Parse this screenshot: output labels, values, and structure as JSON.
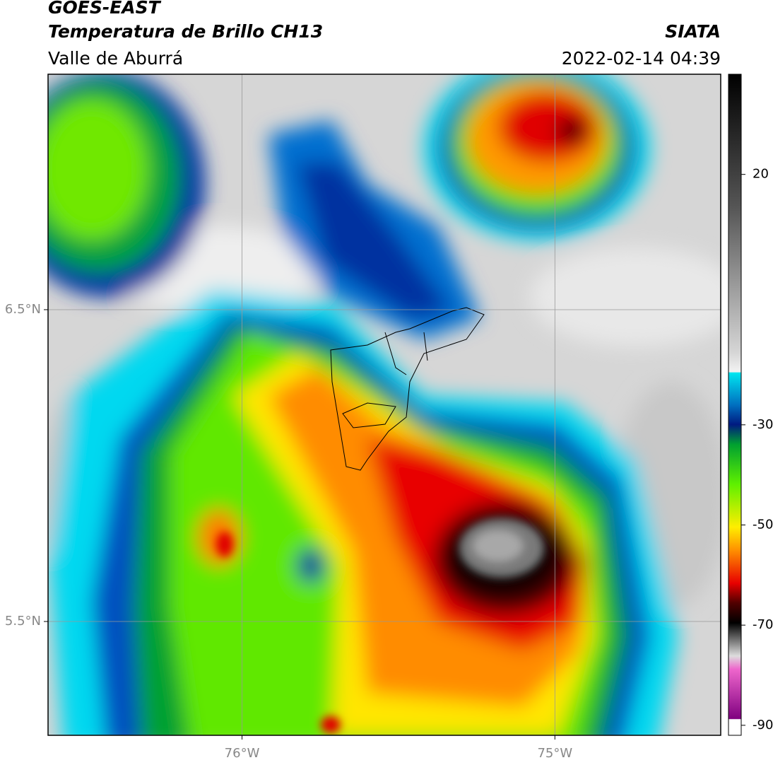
{
  "header": {
    "title": "GOES-EAST",
    "subtitle": "Temperatura de Brillo CH13",
    "region": "Valle de Aburrá",
    "source": "SIATA",
    "datetime": "2022-02-14 04:39"
  },
  "map": {
    "xlim": [
      -76.62,
      -74.47
    ],
    "ylim": [
      5.135,
      7.255
    ],
    "grid": true,
    "lat_ticks": [
      {
        "value": 6.5,
        "label": "6.5°N"
      },
      {
        "value": 5.5,
        "label": "5.5°N"
      }
    ],
    "lon_ticks": [
      {
        "value": -76,
        "label": "76°W"
      },
      {
        "value": -75,
        "label": "75°W"
      }
    ]
  },
  "colorbar": {
    "lim": [
      -92,
      40
    ],
    "ticks": [
      20,
      -30,
      -50,
      -70,
      -90
    ]
  }
}
